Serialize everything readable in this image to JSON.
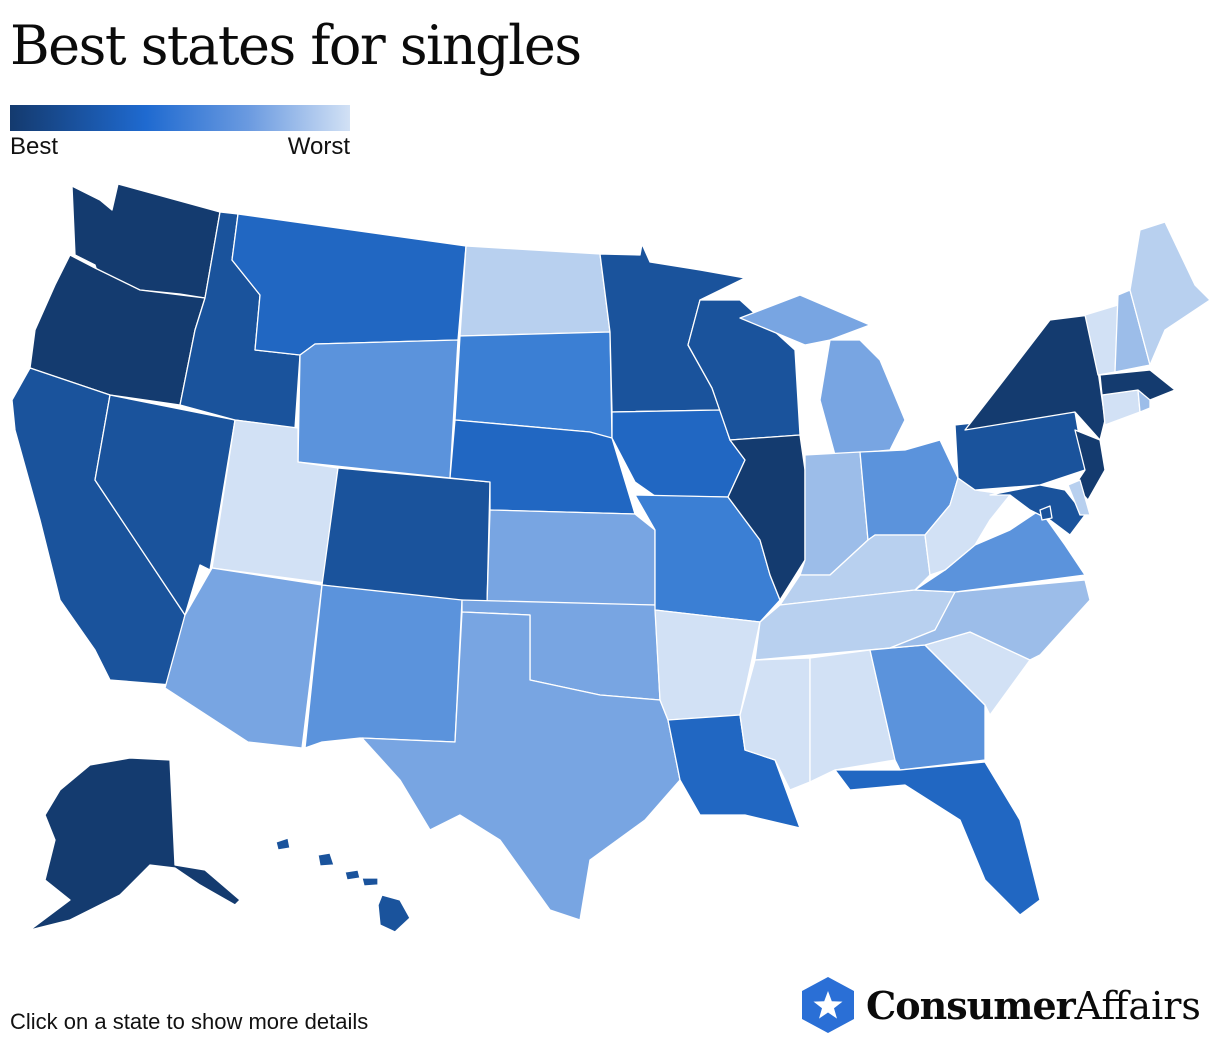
{
  "title": "Best states for singles",
  "legend": {
    "best_label": "Best",
    "worst_label": "Worst"
  },
  "footer_note": "Click on a state to show more details",
  "brand": {
    "name_bold": "Consumer",
    "name_regular": "Affairs",
    "icon": "star-hexagon-icon"
  },
  "colors": {
    "tier1": "#143b6f",
    "tier2": "#1a539c",
    "tier3": "#2167c2",
    "tier4": "#3b7fd4",
    "tier5": "#5b93dc",
    "tier6": "#78a5e2",
    "tier7": "#9cbde9",
    "tier8": "#b8d0ef",
    "tier9": "#d2e1f5"
  },
  "states": [
    {
      "name": "WA",
      "tier": "tier1"
    },
    {
      "name": "OR",
      "tier": "tier1"
    },
    {
      "name": "CA",
      "tier": "tier2"
    },
    {
      "name": "NV",
      "tier": "tier2"
    },
    {
      "name": "ID",
      "tier": "tier2"
    },
    {
      "name": "MT",
      "tier": "tier3"
    },
    {
      "name": "WY",
      "tier": "tier5"
    },
    {
      "name": "UT",
      "tier": "tier9"
    },
    {
      "name": "CO",
      "tier": "tier2"
    },
    {
      "name": "AZ",
      "tier": "tier6"
    },
    {
      "name": "NM",
      "tier": "tier5"
    },
    {
      "name": "ND",
      "tier": "tier8"
    },
    {
      "name": "SD",
      "tier": "tier4"
    },
    {
      "name": "NE",
      "tier": "tier3"
    },
    {
      "name": "KS",
      "tier": "tier6"
    },
    {
      "name": "OK",
      "tier": "tier6"
    },
    {
      "name": "TX",
      "tier": "tier6"
    },
    {
      "name": "MN",
      "tier": "tier2"
    },
    {
      "name": "IA",
      "tier": "tier3"
    },
    {
      "name": "MO",
      "tier": "tier4"
    },
    {
      "name": "AR",
      "tier": "tier9"
    },
    {
      "name": "LA",
      "tier": "tier3"
    },
    {
      "name": "WI",
      "tier": "tier2"
    },
    {
      "name": "IL",
      "tier": "tier1"
    },
    {
      "name": "MI",
      "tier": "tier6"
    },
    {
      "name": "IN",
      "tier": "tier7"
    },
    {
      "name": "OH",
      "tier": "tier5"
    },
    {
      "name": "KY",
      "tier": "tier8"
    },
    {
      "name": "TN",
      "tier": "tier8"
    },
    {
      "name": "MS",
      "tier": "tier9"
    },
    {
      "name": "AL",
      "tier": "tier9"
    },
    {
      "name": "GA",
      "tier": "tier5"
    },
    {
      "name": "FL",
      "tier": "tier3"
    },
    {
      "name": "SC",
      "tier": "tier9"
    },
    {
      "name": "NC",
      "tier": "tier7"
    },
    {
      "name": "VA",
      "tier": "tier5"
    },
    {
      "name": "WV",
      "tier": "tier9"
    },
    {
      "name": "PA",
      "tier": "tier2"
    },
    {
      "name": "NY",
      "tier": "tier1"
    },
    {
      "name": "NJ",
      "tier": "tier1"
    },
    {
      "name": "MD",
      "tier": "tier2"
    },
    {
      "name": "DE",
      "tier": "tier8"
    },
    {
      "name": "DC",
      "tier": "tier2"
    },
    {
      "name": "CT",
      "tier": "tier9"
    },
    {
      "name": "RI",
      "tier": "tier7"
    },
    {
      "name": "MA",
      "tier": "tier1"
    },
    {
      "name": "VT",
      "tier": "tier9"
    },
    {
      "name": "NH",
      "tier": "tier7"
    },
    {
      "name": "ME",
      "tier": "tier8"
    },
    {
      "name": "AK",
      "tier": "tier1"
    },
    {
      "name": "HI",
      "tier": "tier2"
    }
  ]
}
